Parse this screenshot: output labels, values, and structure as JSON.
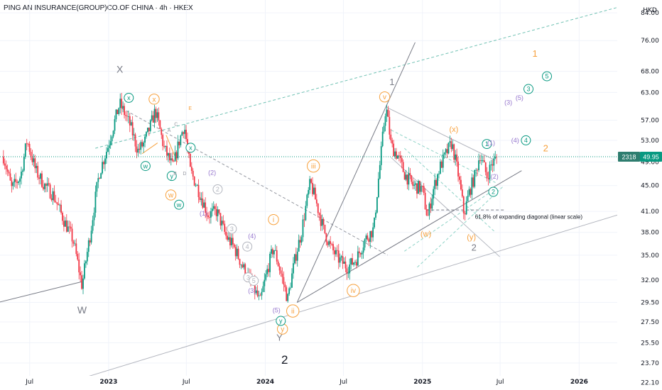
{
  "chart_data": {
    "type": "candlestick",
    "title": "PING AN INSURANCE(GROUP)CO.OF CHINA · 4h · HKEX",
    "currency": "HKD",
    "y_scale": "log",
    "ylim": [
      21.5,
      88
    ],
    "y_ticks": [
      "84.00",
      "76.00",
      "68.00",
      "63.00",
      "57.00",
      "53.00",
      "49.00",
      "45.00",
      "41.00",
      "38.00",
      "35.00",
      "32.00",
      "29.50",
      "27.50",
      "25.50",
      "23.70",
      "22.10"
    ],
    "x_ticks": [
      {
        "label": "Jul",
        "bold": false
      },
      {
        "label": "2023",
        "bold": true
      },
      {
        "label": "Jul",
        "bold": false
      },
      {
        "label": "2024",
        "bold": true
      },
      {
        "label": "Jul",
        "bold": false
      },
      {
        "label": "2025",
        "bold": true
      },
      {
        "label": "Jul",
        "bold": false
      },
      {
        "label": "2026",
        "bold": true
      }
    ],
    "price_path": [
      [
        "2022-05-01",
        50.0
      ],
      [
        "2022-05-20",
        44.5
      ],
      [
        "2022-06-10",
        46.5
      ],
      [
        "2022-06-25",
        53.0
      ],
      [
        "2022-07-15",
        47.5
      ],
      [
        "2022-08-05",
        45.0
      ],
      [
        "2022-08-25",
        43.5
      ],
      [
        "2022-09-20",
        39.5
      ],
      [
        "2022-10-10",
        37.0
      ],
      [
        "2022-10-31",
        31.3
      ],
      [
        "2022-11-20",
        38.0
      ],
      [
        "2022-12-10",
        47.0
      ],
      [
        "2022-12-31",
        52.0
      ],
      [
        "2023-01-27",
        60.5
      ],
      [
        "2023-02-20",
        56.0
      ],
      [
        "2023-03-10",
        51.0
      ],
      [
        "2023-03-25",
        52.5
      ],
      [
        "2023-04-07",
        55.5
      ],
      [
        "2023-04-20",
        59.0
      ],
      [
        "2023-05-10",
        51.5
      ],
      [
        "2023-05-31",
        48.0
      ],
      [
        "2023-06-15",
        53.0
      ],
      [
        "2023-06-26",
        56.0
      ],
      [
        "2023-07-10",
        47.5
      ],
      [
        "2023-07-31",
        44.0
      ],
      [
        "2023-08-20",
        40.5
      ],
      [
        "2023-09-10",
        41.0
      ],
      [
        "2023-10-01",
        37.5
      ],
      [
        "2023-10-20",
        36.0
      ],
      [
        "2023-11-10",
        33.5
      ],
      [
        "2023-12-01",
        31.5
      ],
      [
        "2023-12-20",
        29.5
      ],
      [
        "2024-01-05",
        33.0
      ],
      [
        "2024-01-20",
        36.0
      ],
      [
        "2024-02-05",
        33.0
      ],
      [
        "2024-02-22",
        29.8
      ],
      [
        "2024-03-10",
        34.5
      ],
      [
        "2024-03-25",
        38.0
      ],
      [
        "2024-04-15",
        45.5
      ],
      [
        "2024-04-30",
        42.0
      ],
      [
        "2024-05-15",
        38.5
      ],
      [
        "2024-06-01",
        36.0
      ],
      [
        "2024-06-20",
        34.5
      ],
      [
        "2024-07-10",
        33.5
      ],
      [
        "2024-07-31",
        34.5
      ],
      [
        "2024-08-20",
        37.0
      ],
      [
        "2024-09-10",
        38.5
      ],
      [
        "2024-09-26",
        50.0
      ],
      [
        "2024-10-08",
        60.0
      ],
      [
        "2024-10-20",
        52.0
      ],
      [
        "2024-11-05",
        50.0
      ],
      [
        "2024-11-20",
        47.0
      ],
      [
        "2024-12-10",
        45.0
      ],
      [
        "2024-12-31",
        44.5
      ],
      [
        "2025-01-13",
        40.0
      ],
      [
        "2025-01-25",
        44.0
      ],
      [
        "2025-02-10",
        48.0
      ],
      [
        "2025-02-25",
        50.5
      ],
      [
        "2025-03-10",
        52.5
      ],
      [
        "2025-03-25",
        47.0
      ],
      [
        "2025-04-08",
        40.5
      ],
      [
        "2025-04-20",
        44.0
      ],
      [
        "2025-05-05",
        47.0
      ],
      [
        "2025-05-15",
        50.5
      ],
      [
        "2025-05-31",
        46.5
      ],
      [
        "2025-06-10",
        48.5
      ],
      [
        "2025-06-25",
        49.95
      ]
    ],
    "last_price": "49.95",
    "last_price_count": "2318",
    "annotations": [
      {
        "text": "X",
        "date": "2023-01-27",
        "price": 68.5,
        "color": "#787b86",
        "style": "plain",
        "size": 14
      },
      {
        "text": "W",
        "date": "2022-10-31",
        "price": 28.7,
        "color": "#787b86",
        "style": "plain",
        "size": 14
      },
      {
        "text": "Y",
        "date": "2024-02-03",
        "price": 26.0,
        "color": "#787b86",
        "style": "plain",
        "size": 13
      },
      {
        "text": "2",
        "date": "2024-02-15",
        "price": 24.0,
        "color": "#131722",
        "style": "plain",
        "size": 17
      },
      {
        "text": "1",
        "date": "2024-10-22",
        "price": 65.5,
        "color": "#787b86",
        "style": "plain",
        "size": 13
      },
      {
        "text": "2",
        "date": "2025-05-01",
        "price": 36.0,
        "color": "#787b86",
        "style": "plain",
        "size": 13
      },
      {
        "text": "1",
        "date": "2025-09-20",
        "price": 72.5,
        "color": "#f7a03c",
        "style": "plain",
        "size": 13
      },
      {
        "text": "2",
        "date": "2025-10-15",
        "price": 51.5,
        "color": "#f7a03c",
        "style": "plain",
        "size": 13
      },
      {
        "text": "x",
        "date": "2023-04-17",
        "price": 61.5,
        "color": "#f7a03c",
        "style": "circle",
        "size": 10
      },
      {
        "text": "w",
        "date": "2023-05-26",
        "price": 43.5,
        "color": "#f7a03c",
        "style": "circle",
        "size": 10
      },
      {
        "text": "y",
        "date": "2024-02-10",
        "price": 26.8,
        "color": "#f7a03c",
        "style": "circle",
        "size": 10
      },
      {
        "text": "i",
        "date": "2024-01-20",
        "price": 39.8,
        "color": "#f7a03c",
        "style": "circle",
        "size": 10
      },
      {
        "text": "ii",
        "date": "2024-03-05",
        "price": 28.6,
        "color": "#f7a03c",
        "style": "circle",
        "size": 10
      },
      {
        "text": "iii",
        "date": "2024-04-22",
        "price": 48.3,
        "color": "#f7a03c",
        "style": "circle",
        "size": 10
      },
      {
        "text": "iv",
        "date": "2024-07-24",
        "price": 30.8,
        "color": "#f7a03c",
        "style": "circle",
        "size": 10
      },
      {
        "text": "v",
        "date": "2024-10-05",
        "price": 62.0,
        "color": "#f7a03c",
        "style": "circle",
        "size": 10
      },
      {
        "text": "(x)",
        "date": "2025-03-15",
        "price": 55.2,
        "color": "#f7a03c",
        "style": "plain",
        "size": 11
      },
      {
        "text": "(w)",
        "date": "2025-01-09",
        "price": 37.8,
        "color": "#f7a03c",
        "style": "plain",
        "size": 11
      },
      {
        "text": "(y)",
        "date": "2025-04-25",
        "price": 37.4,
        "color": "#f7a03c",
        "style": "plain",
        "size": 11
      },
      {
        "text": "x",
        "date": "2023-02-17",
        "price": 61.8,
        "color": "#089981",
        "style": "circle",
        "size": 9
      },
      {
        "text": "w",
        "date": "2023-03-28",
        "price": 48.3,
        "color": "#089981",
        "style": "circle",
        "size": 9
      },
      {
        "text": "y",
        "date": "2023-05-28",
        "price": 46.6,
        "color": "#089981",
        "style": "circle",
        "size": 9
      },
      {
        "text": "x",
        "date": "2023-07-11",
        "price": 51.6,
        "color": "#089981",
        "style": "circle",
        "size": 9
      },
      {
        "text": "w",
        "date": "2023-06-14",
        "price": 42.0,
        "color": "#089981",
        "style": "circle",
        "size": 9
      },
      {
        "text": "y",
        "date": "2024-02-06",
        "price": 27.6,
        "color": "#089981",
        "style": "circle",
        "size": 9
      },
      {
        "text": "1",
        "date": "2025-05-31",
        "price": 52.3,
        "color": "#089981",
        "style": "circle",
        "size": 9
      },
      {
        "text": "2",
        "date": "2025-06-15",
        "price": 44.0,
        "color": "#089981",
        "style": "circle",
        "size": 9
      },
      {
        "text": "3",
        "date": "2025-09-05",
        "price": 63.8,
        "color": "#089981",
        "style": "circle",
        "size": 9
      },
      {
        "text": "4",
        "date": "2025-08-30",
        "price": 53.0,
        "color": "#089981",
        "style": "circle",
        "size": 9
      },
      {
        "text": "5",
        "date": "2025-10-18",
        "price": 66.8,
        "color": "#089981",
        "style": "circle",
        "size": 9
      },
      {
        "text": "2",
        "date": "2023-09-12",
        "price": 44.4,
        "color": "#b2b5be",
        "style": "circle",
        "size": 9
      },
      {
        "text": "3",
        "date": "2023-10-15",
        "price": 38.5,
        "color": "#b2b5be",
        "style": "circle",
        "size": 9
      },
      {
        "text": "4",
        "date": "2023-11-20",
        "price": 36.1,
        "color": "#b2b5be",
        "style": "circle",
        "size": 9
      },
      {
        "text": "3",
        "date": "2023-11-22",
        "price": 32.3,
        "color": "#b2b5be",
        "style": "circle",
        "size": 9
      },
      {
        "text": "5",
        "date": "2023-12-05",
        "price": 31.9,
        "color": "#b2b5be",
        "style": "circle",
        "size": 9
      },
      {
        "text": "(2)",
        "date": "2023-08-30",
        "price": 47.2,
        "color": "#9575cd",
        "style": "plain",
        "size": 9
      },
      {
        "text": "(1)",
        "date": "2023-08-10",
        "price": 40.7,
        "color": "#9575cd",
        "style": "plain",
        "size": 9
      },
      {
        "text": "(4)",
        "date": "2023-12-01",
        "price": 37.5,
        "color": "#9575cd",
        "style": "plain",
        "size": 9
      },
      {
        "text": "(3)",
        "date": "2023-12-01",
        "price": 30.8,
        "color": "#9575cd",
        "style": "plain",
        "size": 9
      },
      {
        "text": "(5)",
        "date": "2024-01-27",
        "price": 28.7,
        "color": "#9575cd",
        "style": "plain",
        "size": 9
      },
      {
        "text": "(1)",
        "date": "2025-06-10",
        "price": 52.5,
        "color": "#9575cd",
        "style": "plain",
        "size": 9
      },
      {
        "text": "(2)",
        "date": "2025-06-18",
        "price": 46.5,
        "color": "#9575cd",
        "style": "plain",
        "size": 9
      },
      {
        "text": "(3)",
        "date": "2025-07-20",
        "price": 60.8,
        "color": "#9575cd",
        "style": "plain",
        "size": 9
      },
      {
        "text": "(4)",
        "date": "2025-08-05",
        "price": 53.0,
        "color": "#9575cd",
        "style": "plain",
        "size": 9
      },
      {
        "text": "(5)",
        "date": "2025-08-15",
        "price": 61.8,
        "color": "#9575cd",
        "style": "plain",
        "size": 9
      },
      {
        "text": "A",
        "date": "2023-05-22",
        "price": 55.0,
        "color": "#9598a1",
        "style": "plain",
        "size": 7
      },
      {
        "text": "B",
        "date": "2023-06-05",
        "price": 47.0,
        "color": "#9598a1",
        "style": "plain",
        "size": 7
      },
      {
        "text": "C",
        "date": "2023-06-07",
        "price": 56.2,
        "color": "#9598a1",
        "style": "plain",
        "size": 7
      },
      {
        "text": "D",
        "date": "2023-06-27",
        "price": 47.0,
        "color": "#9598a1",
        "style": "plain",
        "size": 7
      },
      {
        "text": "E",
        "date": "2023-07-10",
        "price": 59.5,
        "color": "#f7a03c",
        "style": "plain",
        "size": 7
      },
      {
        "text": "61.8% of expanding diagonal (linear scale)",
        "date": "2025-05-25",
        "price": 40.2,
        "color": "#131722",
        "style": "plain",
        "size": 8
      }
    ],
    "guide_lines": [
      {
        "from": [
          "2022-04-01",
          29.3
        ],
        "to": [
          "2022-10-31",
          31.8
        ],
        "color": "#787b86",
        "dash": "solid",
        "width": 1
      },
      {
        "from": [
          "2023-02-01",
          59.5
        ],
        "to": [
          "2024-10-12",
          35.0
        ],
        "color": "#9598a1",
        "dash": "dash",
        "width": 1
      },
      {
        "from": [
          "2022-12-01",
          51.5
        ],
        "to": [
          "2026-06-30",
          89.0
        ],
        "color": "#70c1b3",
        "dash": "dash",
        "width": 1
      },
      {
        "from": [
          "2024-03-15",
          29.5
        ],
        "to": [
          "2024-12-15",
          75.5
        ],
        "color": "#787b86",
        "dash": "solid",
        "width": 1
      },
      {
        "from": [
          "2024-03-15",
          29.5
        ],
        "to": [
          "2025-08-20",
          47.5
        ],
        "color": "#787b86",
        "dash": "solid",
        "width": 1
      },
      {
        "from": [
          "2022-09-01",
          21.8
        ],
        "to": [
          "2026-08-31",
          43.5
        ],
        "color": "#b2b5be",
        "dash": "solid",
        "width": 1
      },
      {
        "from": [
          "2024-10-08",
          59.8
        ],
        "to": [
          "2025-06-20",
          49.3
        ],
        "color": "#b2b5be",
        "dash": "solid",
        "width": 1
      },
      {
        "from": [
          "2024-10-20",
          49.8
        ],
        "to": [
          "2025-06-30",
          34.8
        ],
        "color": "#b2b5be",
        "dash": "solid",
        "width": 1
      },
      {
        "from": [
          "2024-10-20",
          55.0
        ],
        "to": [
          "2025-06-20",
          45.5
        ],
        "color": "#8fd3c7",
        "dash": "dash",
        "width": 1
      },
      {
        "from": [
          "2024-11-20",
          51.5
        ],
        "to": [
          "2025-06-20",
          38.0
        ],
        "color": "#8fd3c7",
        "dash": "dash",
        "width": 1
      },
      {
        "from": [
          "2025-01-10",
          41.2
        ],
        "to": [
          "2025-07-10",
          41.2
        ],
        "color": "#787b86",
        "dash": "dash",
        "width": 1
      },
      {
        "from": [
          "2024-11-20",
          35.5
        ],
        "to": [
          "2025-06-20",
          44.5
        ],
        "color": "#8fd3c7",
        "dash": "dash",
        "width": 1
      },
      {
        "from": [
          "2024-12-20",
          33.5
        ],
        "to": [
          "2025-07-10",
          45.0
        ],
        "color": "#8fd3c7",
        "dash": "dash",
        "width": 1
      },
      {
        "from": [
          "2023-03-20",
          50.5
        ],
        "to": [
          "2023-04-25",
          52.5
        ],
        "color": "#f7a03c",
        "dash": "solid",
        "width": 1
      },
      {
        "from": [
          "2023-05-15",
          54.0
        ],
        "to": [
          "2023-06-10",
          49.0
        ],
        "color": "#f7a03c",
        "dash": "solid",
        "width": 1
      }
    ],
    "colors": {
      "up": "#089981",
      "down": "#f23645",
      "last_price_line": "#089981",
      "last_price_box": "#089981",
      "count_box": "#2e7d6f",
      "grid": "#f0f3fa"
    }
  }
}
